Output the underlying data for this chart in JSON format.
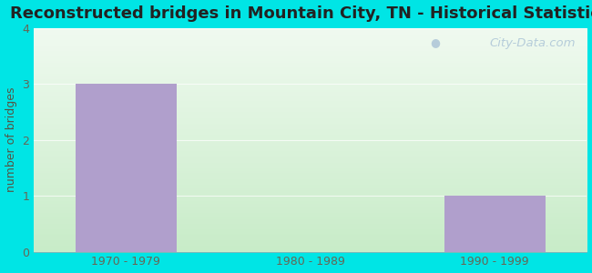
{
  "title": "Reconstructed bridges in Mountain City, TN - Historical Statistics",
  "categories": [
    "1970 - 1979",
    "1980 - 1989",
    "1990 - 1999"
  ],
  "values": [
    3,
    0,
    1
  ],
  "bar_color": "#b09fcc",
  "ylabel": "number of bridges",
  "ylim": [
    0,
    4
  ],
  "yticks": [
    0,
    1,
    2,
    3,
    4
  ],
  "title_fontsize": 13,
  "axis_label_fontsize": 9,
  "tick_fontsize": 9,
  "background_outer": "#00e5e5",
  "watermark": "City-Data.com",
  "title_color": "#222222",
  "tick_color": "#666655",
  "ylabel_color": "#555544"
}
